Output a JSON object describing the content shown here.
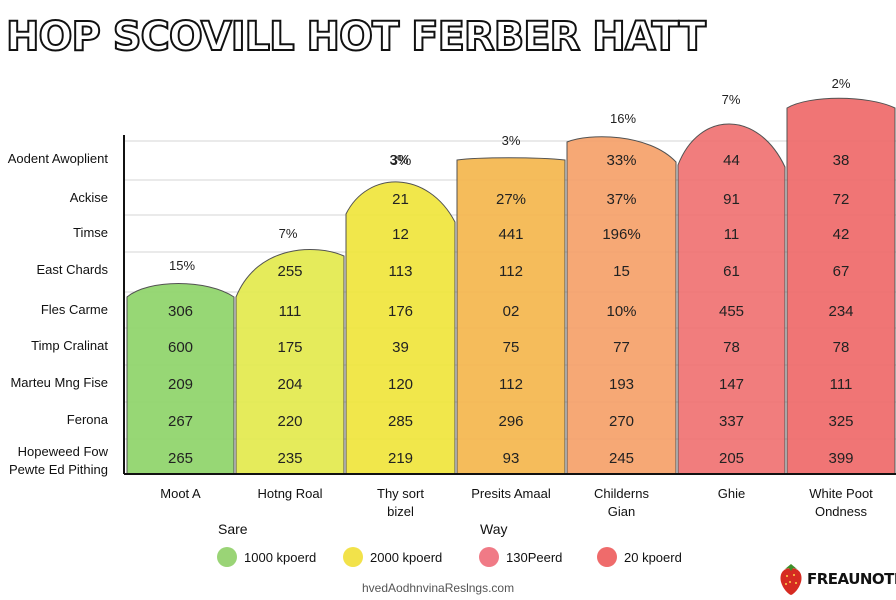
{
  "title": "HOP SCOVILL HOT FERBER HATT",
  "footer": "hvedAodhnvinaReslngs.com",
  "brand": "FREAUNOTE",
  "colors": {
    "columns": [
      "#8fd46a",
      "#e3ea4e",
      "#f0e63c",
      "#f5b74e",
      "#f6a16a",
      "#f07272",
      "#ef6a6a"
    ],
    "axis": "#111111",
    "grid": "#d4d4d4"
  },
  "chart_data": {
    "type": "table",
    "title": "HOP SCOVILL HOT FERBER HATT",
    "row_labels": [
      "Aodent Awoplient",
      "Ackise",
      "Timse",
      "East Chards",
      "Fles Carme",
      "Timp Cralinat",
      "Marteu Mng Fise",
      "Ferona",
      "Hopeweed Fow Pewte Ed Pithing"
    ],
    "categories": [
      "Moot A",
      "Hotng Roal",
      "Thy sort bizel",
      "Presits Amaal",
      "Childerns Gian",
      "Ghie",
      "White Poot Ondness"
    ],
    "top_labels": [
      "15%",
      "7%",
      "3%",
      "3%",
      "16%",
      "7%",
      "2%"
    ],
    "columns": [
      {
        "name": "Moot A",
        "cells": [
          "",
          "",
          "",
          "",
          "306",
          "600",
          "209",
          "267",
          "265"
        ]
      },
      {
        "name": "Hotng Roal",
        "cells": [
          "",
          "",
          "",
          "255",
          "111",
          "175",
          "204",
          "220",
          "235"
        ]
      },
      {
        "name": "Thy sort bizel",
        "cells": [
          "3%",
          "21",
          "12",
          "113",
          "176",
          "39",
          "120",
          "285",
          "219"
        ]
      },
      {
        "name": "Presits Amaal",
        "cells": [
          "",
          "27%",
          "441",
          "112",
          "02",
          "75",
          "112",
          "296",
          "93"
        ]
      },
      {
        "name": "Childerns Gian",
        "cells": [
          "33%",
          "37%",
          "196%",
          "15",
          "10%",
          "77",
          "193",
          "270",
          "245"
        ]
      },
      {
        "name": "Ghie",
        "cells": [
          "44",
          "91",
          "11",
          "61",
          "455",
          "78",
          "147",
          "337",
          "205"
        ]
      },
      {
        "name": "White Poot Ondness",
        "cells": [
          "38",
          "72",
          "42",
          "67",
          "234",
          "78",
          "111",
          "325",
          "399"
        ]
      }
    ],
    "grid": true,
    "legend": {
      "position": "bottom",
      "groups": [
        {
          "title": "Sare",
          "items": [
            {
              "label": "1000 kpoerd",
              "color": "#9ad476"
            },
            {
              "label": "2000 kpoerd",
              "color": "#f2e24a"
            }
          ]
        },
        {
          "title": "Way",
          "items": [
            {
              "label": "130Peerd",
              "color": "#f07a86"
            },
            {
              "label": "20 kpoerd",
              "color": "#ef6b6b"
            }
          ]
        }
      ]
    }
  }
}
